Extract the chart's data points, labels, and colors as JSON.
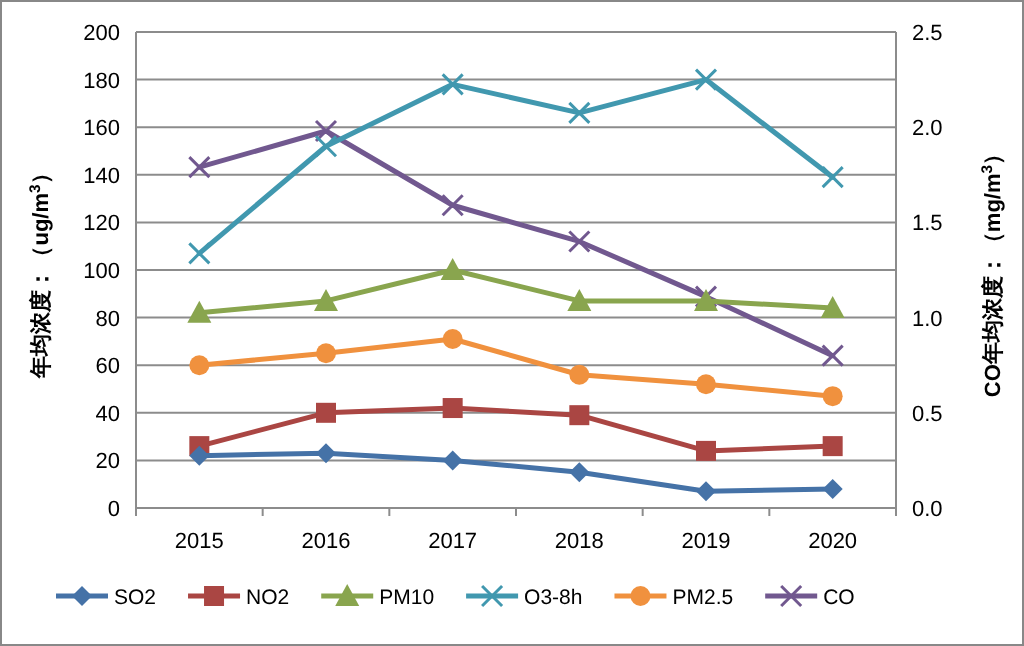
{
  "chart_data": {
    "type": "line",
    "categories": [
      "2015",
      "2016",
      "2017",
      "2018",
      "2019",
      "2020"
    ],
    "ylabel": "年均浓度：（ug/m$^{3}$）",
    "y2label": "CO年均浓度：（mg/m$^{3}$）",
    "ylim": [
      0,
      200
    ],
    "yticks": [
      0,
      20,
      40,
      60,
      80,
      100,
      120,
      140,
      160,
      180,
      200
    ],
    "y2lim": [
      0,
      2.5
    ],
    "y2ticks": [
      {
        "value": 0,
        "label": "0.0"
      },
      {
        "value": 0.5,
        "label": "0.5"
      },
      {
        "value": 1,
        "label": "1.0"
      },
      {
        "value": 1.5,
        "label": "1.5"
      },
      {
        "value": 2,
        "label": "2.0"
      },
      {
        "value": 2.5,
        "label": "2.5"
      }
    ],
    "grid": "y",
    "legend": "bottom",
    "line_style": "solid",
    "series": [
      {
        "name": "SO2",
        "color": "#4572a7",
        "marker": "diamond",
        "values": [
          22,
          23,
          20,
          15,
          7,
          8
        ]
      },
      {
        "name": "NO2",
        "color": "#aa4643",
        "marker": "square",
        "values": [
          26,
          40,
          42,
          39,
          24,
          26
        ]
      },
      {
        "name": "PM10",
        "color": "#89a54e",
        "marker": "triangle",
        "values": [
          82,
          87,
          100,
          87,
          87,
          84
        ]
      },
      {
        "name": "O3-8h",
        "color": "#4198af",
        "marker": "cross",
        "values": [
          107,
          152,
          178,
          166,
          180,
          139
        ]
      },
      {
        "name": "PM2.5",
        "color": "#f0913e",
        "marker": "circle",
        "values": [
          60,
          65,
          71,
          56,
          52,
          47
        ]
      },
      {
        "name": "CO",
        "color": "#71588f",
        "marker": "cross",
        "axis": "y2",
        "values": [
          1.79,
          1.98,
          1.59,
          1.4,
          1.11,
          0.8
        ]
      }
    ]
  }
}
